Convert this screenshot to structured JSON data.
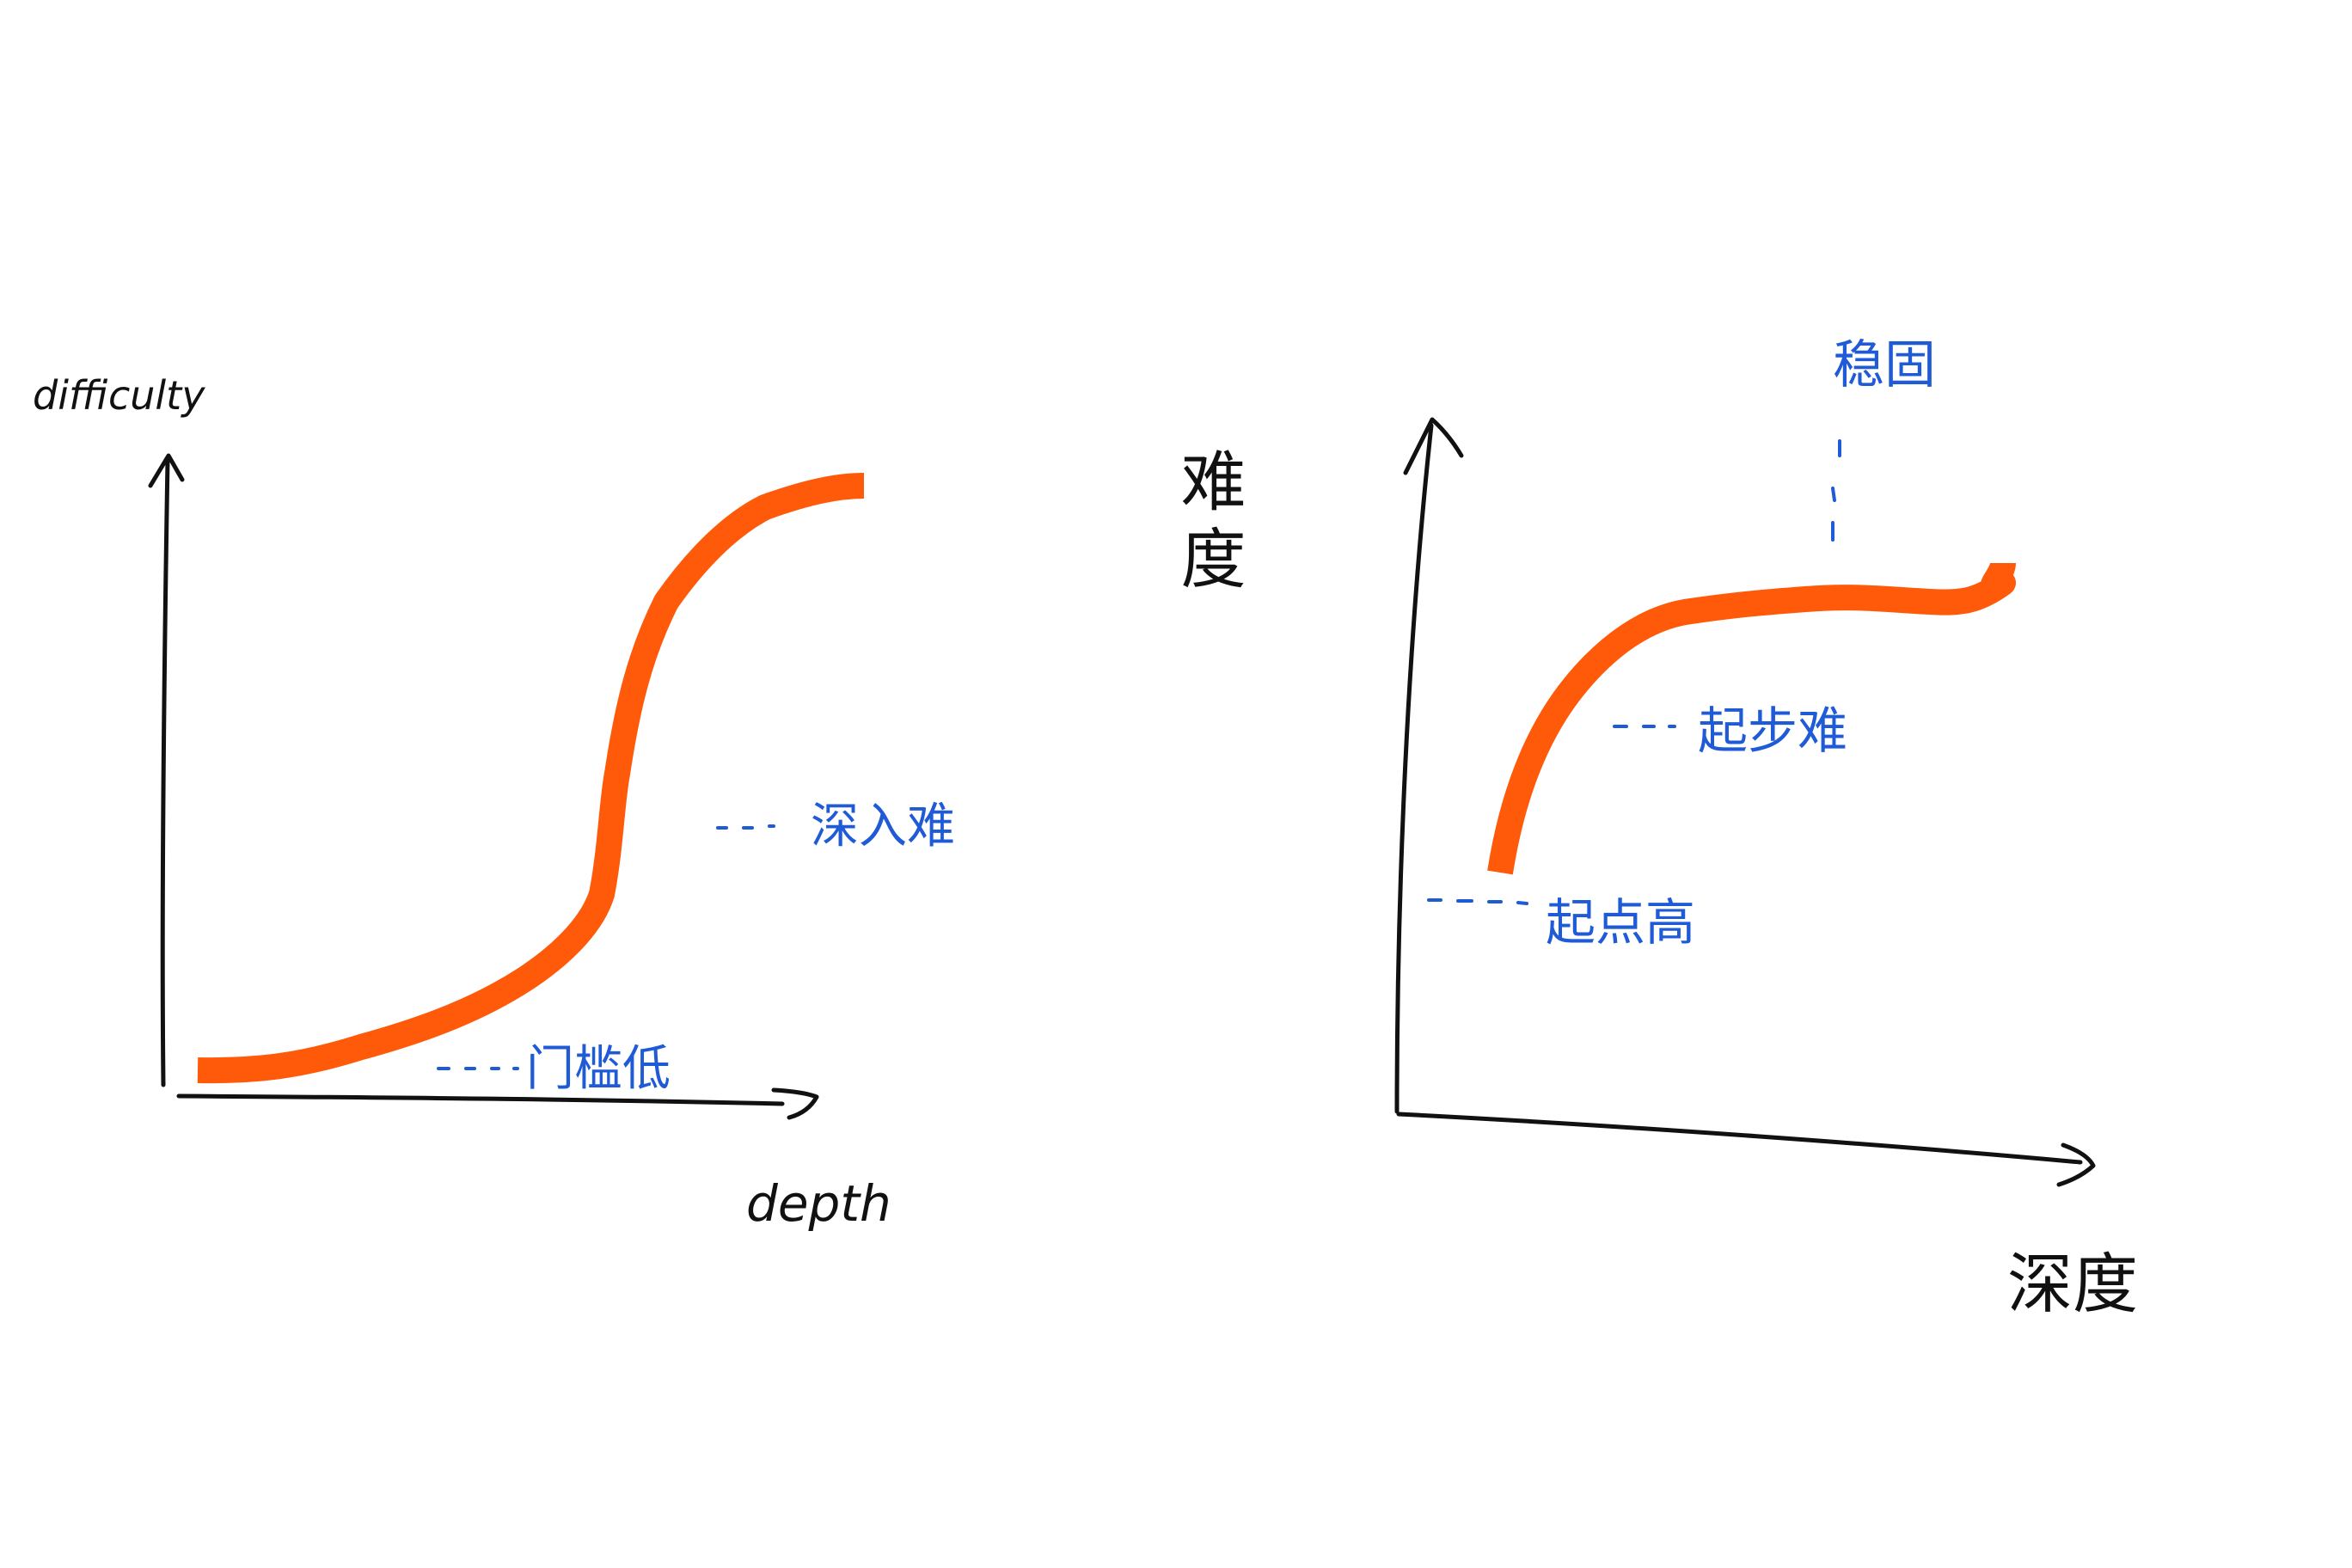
{
  "colors": {
    "ink": "#111111",
    "curve": "#FF5A0A",
    "annotation": "#1F5BD6",
    "background": "#FFFFFF"
  },
  "left_chart": {
    "y_axis_label": "difficulty",
    "x_axis_label": "depth",
    "annotations": {
      "steep_rise": "深入难",
      "low_start": "门槛低"
    }
  },
  "right_chart": {
    "y_axis_label": "难度",
    "x_axis_label": "深度",
    "annotations": {
      "plateau": "稳固",
      "rising": "起步难",
      "high_start": "起点高"
    }
  }
}
